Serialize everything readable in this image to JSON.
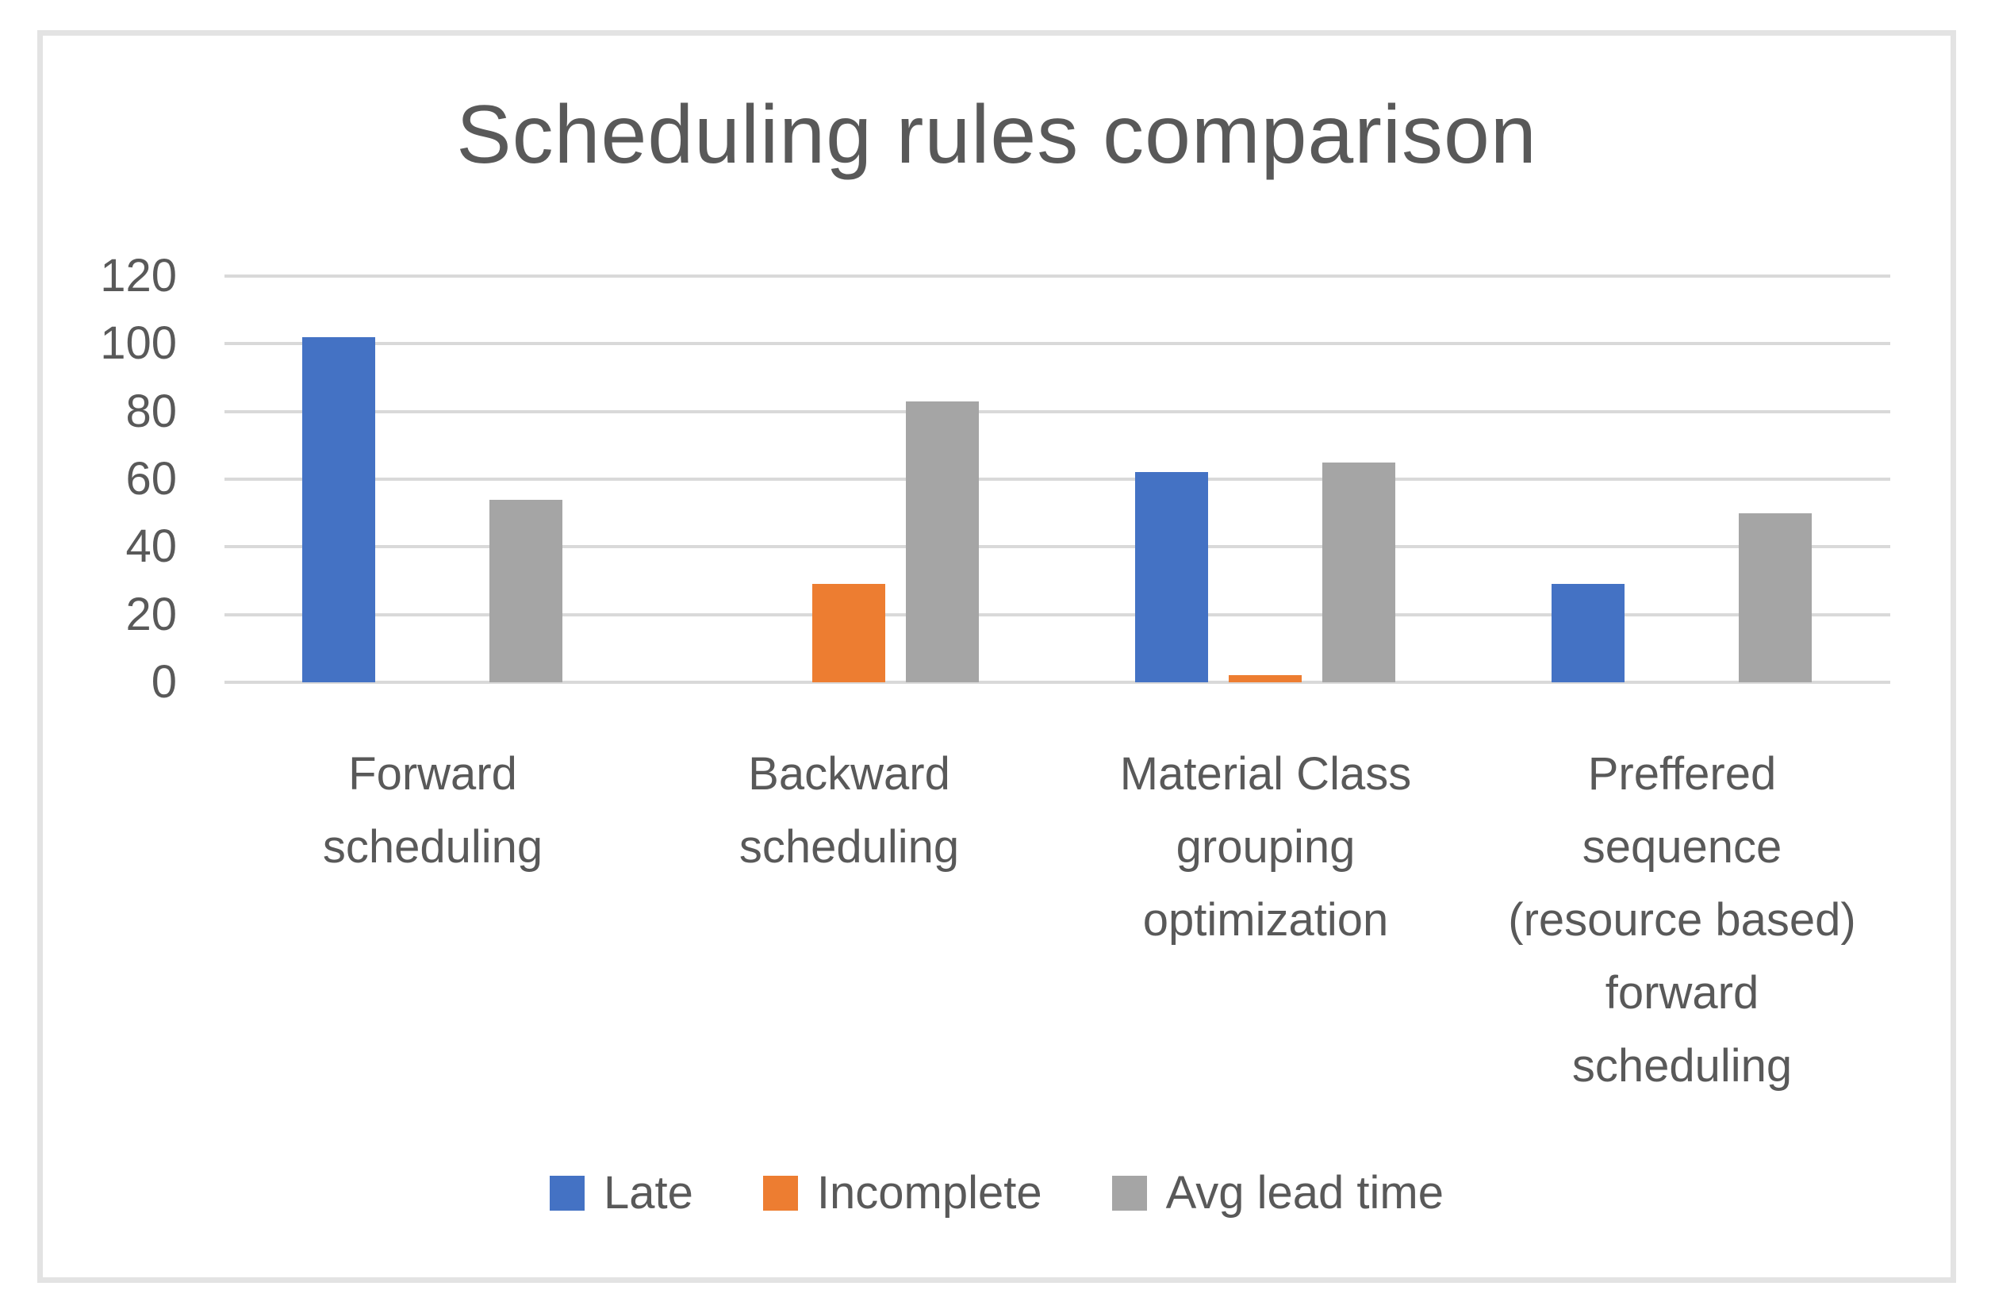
{
  "chart_data": {
    "type": "bar",
    "title": "Scheduling rules comparison",
    "categories": [
      "Forward scheduling",
      "Backward scheduling",
      "Material Class grouping optimization",
      "Preffered sequence (resource based) forward scheduling"
    ],
    "category_lines": [
      [
        "Forward",
        "scheduling"
      ],
      [
        "Backward",
        "scheduling"
      ],
      [
        "Material Class",
        "grouping",
        "optimization"
      ],
      [
        "Preffered",
        "sequence",
        "(resource based)",
        "forward",
        "scheduling"
      ]
    ],
    "series": [
      {
        "name": "Late",
        "color": "#4472C4",
        "values": [
          102,
          0,
          62,
          29
        ]
      },
      {
        "name": "Incomplete",
        "color": "#ED7D31",
        "values": [
          0,
          29,
          2,
          0
        ]
      },
      {
        "name": "Avg lead time",
        "color": "#A5A5A5",
        "values": [
          54,
          83,
          65,
          50
        ]
      }
    ],
    "ylim": [
      0,
      120
    ],
    "yticks": [
      0,
      20,
      40,
      60,
      80,
      100,
      120
    ],
    "grid": true,
    "legend_position": "bottom",
    "colors": {
      "axis_text": "#595959",
      "grid": "#D9D9D9",
      "frame_border": "#E3E3E3",
      "background": "#FFFFFF"
    }
  }
}
